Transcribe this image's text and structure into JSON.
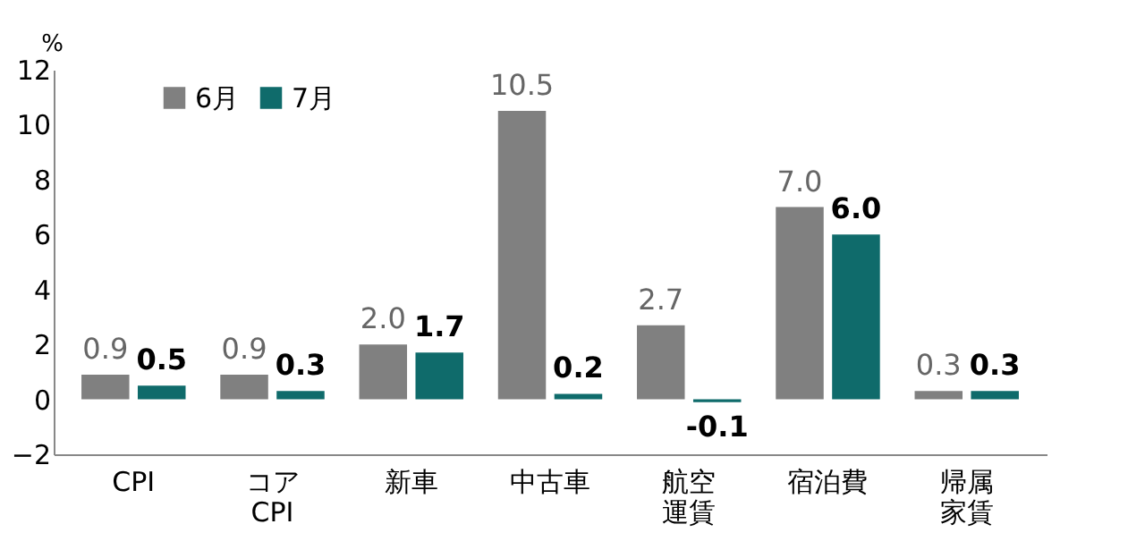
{
  "chart_data": {
    "type": "bar",
    "ylabel": "%",
    "categories": [
      "CPI",
      "コア\nCPI",
      "新車",
      "中古車",
      "航空運賃",
      "宿泊費",
      "帰属家賃"
    ],
    "series": [
      {
        "name": "6月",
        "color": "#808080",
        "values": [
          0.9,
          0.9,
          2.0,
          10.5,
          2.7,
          7.0,
          0.3
        ],
        "value_labels": [
          "0.9",
          "0.9",
          "2.0",
          "10.5",
          "2.7",
          "7.0",
          "0.3"
        ]
      },
      {
        "name": "7月",
        "color": "#0f6b6b",
        "values": [
          0.5,
          0.3,
          1.7,
          0.2,
          -0.1,
          6.0,
          0.3
        ],
        "value_labels": [
          "0.5",
          "0.3",
          "1.7",
          "0.2",
          "-0.1",
          "6.0",
          "0.3"
        ]
      }
    ],
    "ylim": [
      -2,
      12
    ],
    "yticks": [
      -2,
      0,
      2,
      4,
      6,
      8,
      10,
      12
    ],
    "grid": false,
    "legend": "top left"
  }
}
